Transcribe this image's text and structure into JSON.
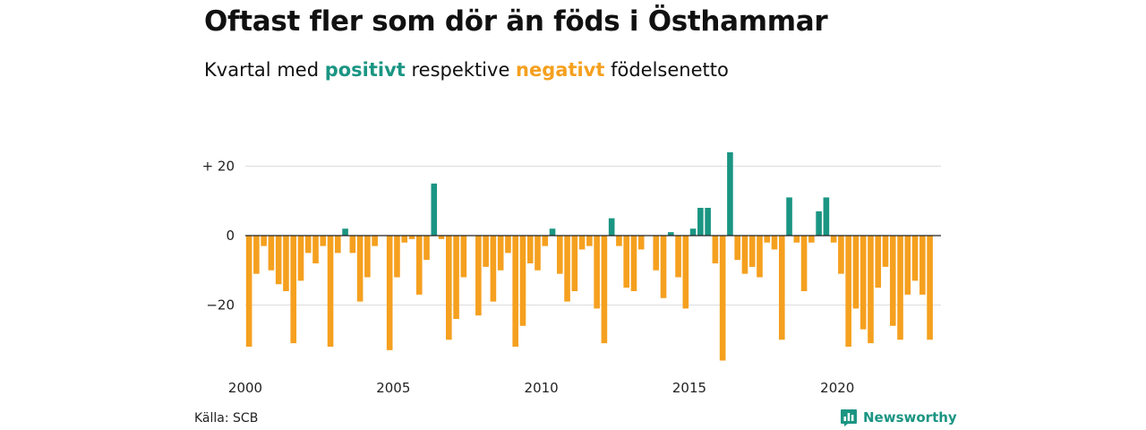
{
  "header": {
    "title": "Oftast fler som dör än föds i Östhammar",
    "subtitle_pre": "Kvartal med ",
    "subtitle_pos": "positivt",
    "subtitle_mid": " respektive ",
    "subtitle_neg": "negativt",
    "subtitle_post": " födelsenetto"
  },
  "footer": {
    "source": "Källa: SCB",
    "brand": "Newsworthy",
    "brand_icon": "newsworthy-logo-icon"
  },
  "colors": {
    "positive": "#1b9583",
    "negative": "#f5a01f",
    "grid": "#dddddd",
    "zero_line": "#222222"
  },
  "chart_data": {
    "type": "bar",
    "title": "",
    "xlabel": "",
    "ylabel": "",
    "ylim": [
      -36,
      25
    ],
    "grid": true,
    "y_ticks": [
      20,
      0,
      -20
    ],
    "y_tick_labels": [
      "+ 20",
      "0",
      "−20"
    ],
    "x_ticks": [
      2000,
      2005,
      2010,
      2015,
      2020
    ],
    "x_tick_labels": [
      "2000",
      "2005",
      "2010",
      "2015",
      "2020"
    ],
    "start_year": 2000,
    "categories": [
      "2000 Q1",
      "2000 Q2",
      "2000 Q3",
      "2000 Q4",
      "2001 Q1",
      "2001 Q2",
      "2001 Q3",
      "2001 Q4",
      "2002 Q1",
      "2002 Q2",
      "2002 Q3",
      "2002 Q4",
      "2003 Q1",
      "2003 Q2",
      "2003 Q3",
      "2003 Q4",
      "2004 Q1",
      "2004 Q2",
      "2004 Q3",
      "2004 Q4",
      "2005 Q1",
      "2005 Q2",
      "2005 Q3",
      "2005 Q4",
      "2006 Q1",
      "2006 Q2",
      "2006 Q3",
      "2006 Q4",
      "2007 Q1",
      "2007 Q2",
      "2007 Q3",
      "2007 Q4",
      "2008 Q1",
      "2008 Q2",
      "2008 Q3",
      "2008 Q4",
      "2009 Q1",
      "2009 Q2",
      "2009 Q3",
      "2009 Q4",
      "2010 Q1",
      "2010 Q2",
      "2010 Q3",
      "2010 Q4",
      "2011 Q1",
      "2011 Q2",
      "2011 Q3",
      "2011 Q4",
      "2012 Q1",
      "2012 Q2",
      "2012 Q3",
      "2012 Q4",
      "2013 Q1",
      "2013 Q2",
      "2013 Q3",
      "2013 Q4",
      "2014 Q1",
      "2014 Q2",
      "2014 Q3",
      "2014 Q4",
      "2015 Q1",
      "2015 Q2",
      "2015 Q3",
      "2015 Q4",
      "2016 Q1",
      "2016 Q2",
      "2016 Q3",
      "2016 Q4",
      "2017 Q1",
      "2017 Q2",
      "2017 Q3",
      "2017 Q4",
      "2018 Q1",
      "2018 Q2",
      "2018 Q3",
      "2018 Q4",
      "2019 Q1",
      "2019 Q2",
      "2019 Q3",
      "2019 Q4",
      "2020 Q1",
      "2020 Q2",
      "2020 Q3",
      "2020 Q4",
      "2021 Q1",
      "2021 Q2",
      "2021 Q3",
      "2021 Q4",
      "2022 Q1",
      "2022 Q2",
      "2022 Q3",
      "2022 Q4",
      "2023 Q1",
      "2023 Q2"
    ],
    "values": [
      -32,
      -11,
      -3,
      -10,
      -14,
      -16,
      -31,
      -13,
      -5,
      -8,
      -3,
      -32,
      -5,
      2,
      -5,
      -19,
      -12,
      -3,
      0,
      -33,
      -12,
      -2,
      -1,
      -17,
      -7,
      15,
      -1,
      -30,
      -24,
      -12,
      0,
      -23,
      -9,
      -19,
      -10,
      -5,
      -32,
      -26,
      -8,
      -10,
      -3,
      2,
      -11,
      -19,
      -16,
      -4,
      -3,
      -21,
      -31,
      5,
      -3,
      -15,
      -16,
      -4,
      0,
      -10,
      -18,
      1,
      -12,
      -21,
      2,
      8,
      8,
      -8,
      -36,
      24,
      -7,
      -11,
      -9,
      -12,
      -2,
      -4,
      -30,
      11,
      -2,
      -16,
      -2,
      7,
      11,
      -2,
      -11,
      -32,
      -21,
      -27,
      -31,
      -15,
      -9,
      -26,
      -30,
      -17,
      -13,
      -17,
      -30,
      0
    ]
  }
}
